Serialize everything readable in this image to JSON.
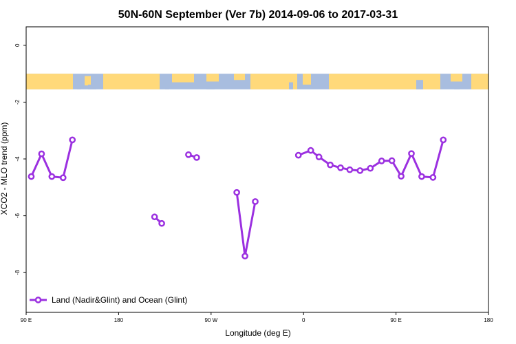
{
  "chart_data": {
    "type": "line",
    "title": "50N-60N September (Ver 7b)   2014-09-06 to 2017-03-31",
    "xlabel": "Longitude (deg E)",
    "ylabel": "XCO2 - MLO trend (ppm)",
    "xlim": [
      90,
      540
    ],
    "ylim": [
      -9.4,
      0.65
    ],
    "x_ticks": [
      {
        "value": 90,
        "label": "90 E"
      },
      {
        "value": 180,
        "label": "180"
      },
      {
        "value": 270,
        "label": "90 W"
      },
      {
        "value": 360,
        "label": "0"
      },
      {
        "value": 450,
        "label": "90 E"
      },
      {
        "value": 540,
        "label": "180"
      }
    ],
    "y_ticks": [
      {
        "value": 0,
        "label": "0"
      },
      {
        "value": -2,
        "label": "-2"
      },
      {
        "value": -4,
        "label": "-4"
      },
      {
        "value": -6,
        "label": "-6"
      },
      {
        "value": -8,
        "label": "-8"
      }
    ],
    "map_strip": {
      "y_top": -1.0,
      "y_bottom": -1.55,
      "land_color": "#FFD97A",
      "ocean_color": "#A8BDDF"
    },
    "series": [
      {
        "name": "Land (Nadir&Glint) and Ocean (Glint)",
        "color": "#9B30E0",
        "segments": [
          [
            [
              95,
              -4.62
            ],
            [
              105,
              -3.82
            ],
            [
              115,
              -4.62
            ],
            [
              126,
              -4.66
            ],
            [
              135,
              -3.33
            ]
          ],
          [
            [
              215,
              -6.04
            ],
            [
              222,
              -6.27
            ]
          ],
          [
            [
              248,
              -3.85
            ],
            [
              256,
              -3.95
            ]
          ],
          [
            [
              295,
              -5.18
            ],
            [
              303,
              -7.42
            ],
            [
              313,
              -5.5
            ]
          ],
          [
            [
              355,
              -3.87
            ],
            [
              367,
              -3.7
            ],
            [
              375,
              -3.93
            ],
            [
              386,
              -4.21
            ],
            [
              396,
              -4.31
            ],
            [
              405,
              -4.38
            ],
            [
              415,
              -4.41
            ],
            [
              425,
              -4.33
            ],
            [
              436,
              -4.07
            ],
            [
              446,
              -4.06
            ],
            [
              455,
              -4.61
            ],
            [
              465,
              -3.81
            ],
            [
              475,
              -4.62
            ],
            [
              486,
              -4.65
            ],
            [
              496,
              -3.33
            ]
          ]
        ]
      }
    ],
    "legend": {
      "position": "bottom-left"
    },
    "grid": false
  }
}
